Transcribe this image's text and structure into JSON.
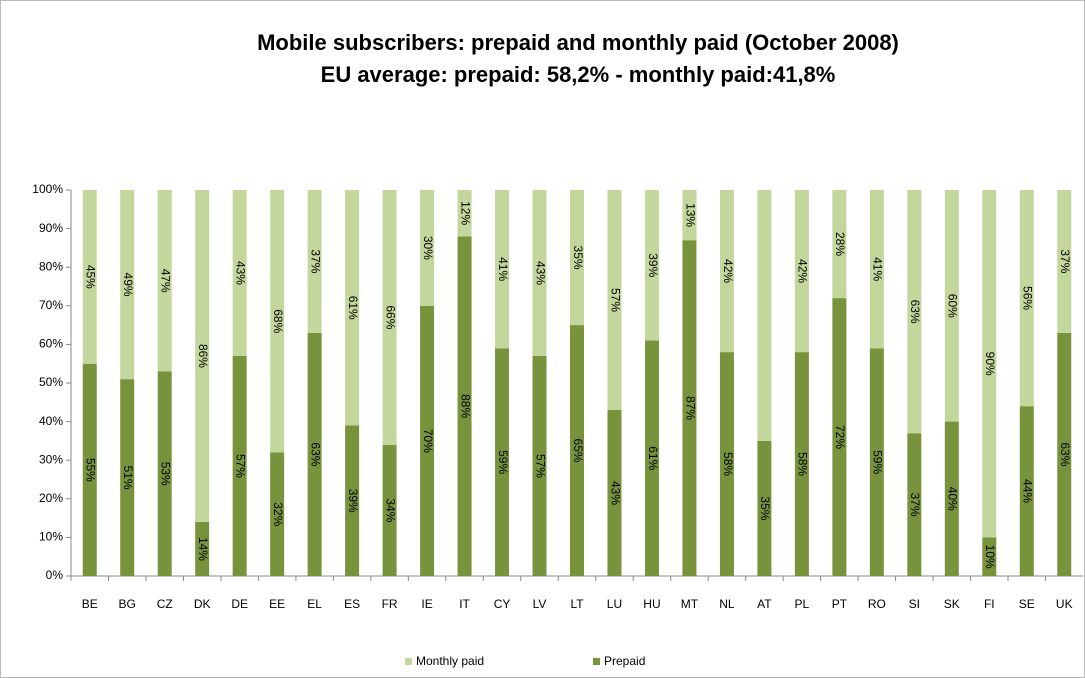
{
  "chart_data": {
    "type": "stacked_bar",
    "title": "Mobile subscribers: prepaid and monthly paid (October 2008)",
    "subtitle": "EU average: prepaid:  58,2% - monthly paid:41,8%",
    "categories": [
      "BE",
      "BG",
      "CZ",
      "DK",
      "DE",
      "EE",
      "EL",
      "ES",
      "FR",
      "IE",
      "IT",
      "CY",
      "LV",
      "LT",
      "LU",
      "HU",
      "MT",
      "NL",
      "AT",
      "PL",
      "PT",
      "RO",
      "SI",
      "SK",
      "FI",
      "SE",
      "UK"
    ],
    "series": [
      {
        "name": "Prepaid",
        "color": "#77933c",
        "values": [
          55,
          51,
          53,
          14,
          57,
          32,
          63,
          39,
          34,
          70,
          88,
          59,
          57,
          65,
          43,
          61,
          87,
          58,
          35,
          58,
          72,
          59,
          37,
          40,
          10,
          44,
          63
        ],
        "value_labels": [
          "55%",
          "51%",
          "53%",
          "14%",
          "57%",
          "32%",
          "63%",
          "39%",
          "34%",
          "70%",
          "88%",
          "59%",
          "57%",
          "65%",
          "43%",
          "61%",
          "87%",
          "58%",
          "35%",
          "58%",
          "72%",
          "59%",
          "37%",
          "40%",
          "10%",
          "44%",
          "63%"
        ]
      },
      {
        "name": "Monthly paid",
        "color": "#c3d69b",
        "values": [
          45,
          49,
          47,
          86,
          43,
          68,
          37,
          61,
          66,
          30,
          12,
          41,
          43,
          35,
          57,
          39,
          13,
          42,
          65,
          42,
          28,
          41,
          63,
          60,
          90,
          56,
          37
        ],
        "value_labels": [
          "45%",
          "49%",
          "47%",
          "86%",
          "43%",
          "68%",
          "37%",
          "61%",
          "66%",
          "30%",
          "12%",
          "41%",
          "43%",
          "35%",
          "57%",
          "39%",
          "13%",
          "42%",
          null,
          "42%",
          "28%",
          "41%",
          "63%",
          "60%",
          "90%",
          "56%",
          "37%"
        ]
      }
    ],
    "ylim": [
      0,
      100
    ],
    "yticks": [
      {
        "value": 0,
        "label": "0%"
      },
      {
        "value": 10,
        "label": "10%"
      },
      {
        "value": 20,
        "label": "20%"
      },
      {
        "value": 30,
        "label": "30%"
      },
      {
        "value": 40,
        "label": "40%"
      },
      {
        "value": 50,
        "label": "50%"
      },
      {
        "value": 60,
        "label": "60%"
      },
      {
        "value": 70,
        "label": "70%"
      },
      {
        "value": 80,
        "label": "80%"
      },
      {
        "value": 90,
        "label": "90%"
      },
      {
        "value": 100,
        "label": "100%"
      }
    ],
    "legend": "bottom"
  }
}
